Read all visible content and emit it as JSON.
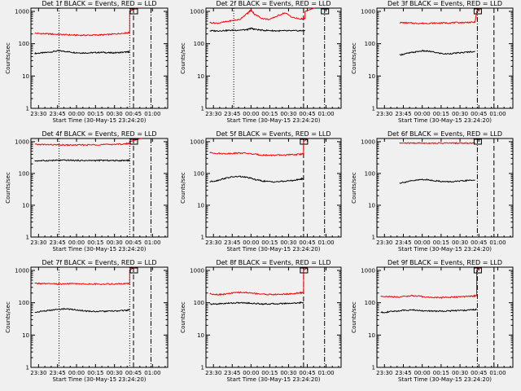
{
  "figure": {
    "background": "#f0f0f0",
    "colors": {
      "events": "#000000",
      "lld": "#ff0000",
      "axes": "#000000"
    }
  },
  "chart_data": [
    {
      "type": "line",
      "title": "Det 1f BLACK = Events, RED = LLD",
      "xlabel": "Start Time (30-May-15 23:24:20)",
      "ylabel": "Counts/sec",
      "x_tick_labels": [
        "23:30",
        "23:45",
        "00:00",
        "00:15",
        "00:30",
        "00:45",
        "01:00"
      ],
      "y_tick_labels": [
        "1",
        "10",
        "100",
        "1000"
      ],
      "y_scale": "log",
      "ylim": [
        1,
        1000
      ],
      "x": [
        23.45,
        23.55,
        23.65,
        23.75,
        23.85,
        23.95,
        24.05,
        24.15,
        24.25,
        24.35,
        24.45,
        24.55,
        24.65,
        24.7
      ],
      "series": [
        {
          "name": "BLACK = Events",
          "color": "#000000",
          "values": [
            50,
            52,
            55,
            60,
            58,
            54,
            52,
            52,
            53,
            54,
            52,
            53,
            55,
            56
          ]
        },
        {
          "name": "RED = LLD",
          "color": "#ff0000",
          "values": [
            210,
            205,
            200,
            195,
            190,
            185,
            183,
            183,
            185,
            188,
            195,
            205,
            215,
            220
          ]
        }
      ],
      "spike": {
        "start": 24.7,
        "end": 24.78,
        "to": 1000,
        "series": "RED = LLD"
      },
      "vlines": [
        {
          "x": 23.77,
          "style": "dotted"
        },
        {
          "x": 24.7,
          "style": "dotted"
        },
        {
          "x": 24.75,
          "style": "dashed"
        },
        {
          "x": 24.98,
          "style": "dashdot"
        }
      ],
      "marker": "bracket-box"
    },
    {
      "type": "line",
      "title": "Det 2f BLACK = Events, RED = LLD",
      "xlabel": "Start Time (30-May-15 23:24:20)",
      "ylabel": "Counts/sec",
      "x_tick_labels": [
        "23:30",
        "23:45",
        "00:00",
        "00:15",
        "00:30",
        "00:45",
        "01:00"
      ],
      "y_tick_labels": [
        "1",
        "10",
        "100",
        "1000"
      ],
      "y_scale": "log",
      "ylim": [
        1,
        1000
      ],
      "x": [
        23.45,
        23.55,
        23.65,
        23.75,
        23.85,
        23.95,
        24.0,
        24.05,
        24.15,
        24.25,
        24.35,
        24.45,
        24.55,
        24.65,
        24.72
      ],
      "series": [
        {
          "name": "BLACK = Events",
          "color": "#000000",
          "values": [
            250,
            250,
            255,
            260,
            265,
            270,
            300,
            280,
            260,
            255,
            250,
            250,
            250,
            252,
            255
          ]
        },
        {
          "name": "RED = LLD",
          "color": "#ff0000",
          "values": [
            450,
            430,
            470,
            520,
            560,
            850,
            1100,
            800,
            600,
            560,
            720,
            900,
            650,
            580,
            600
          ]
        }
      ],
      "spike": {
        "start": 24.72,
        "end": 24.84,
        "to": 1000,
        "series": "RED = LLD"
      },
      "vlines": [
        {
          "x": 23.77,
          "style": "dotted"
        },
        {
          "x": 24.7,
          "style": "dashed"
        },
        {
          "x": 24.98,
          "style": "dashdot"
        }
      ],
      "marker": "bracket-box"
    },
    {
      "type": "line",
      "title": "Det 3f BLACK = Events, RED = LLD",
      "xlabel": "Start Time (30-May-15 23:24:20)",
      "ylabel": "Counts/sec",
      "x_tick_labels": [
        "23:30",
        "23:45",
        "00:00",
        "00:15",
        "00:30",
        "00:45",
        "01:00"
      ],
      "y_tick_labels": [
        "1",
        "10",
        "100",
        "1000"
      ],
      "y_scale": "log",
      "ylim": [
        1,
        1000
      ],
      "x": [
        23.7,
        23.8,
        23.9,
        24.0,
        24.1,
        24.2,
        24.3,
        24.4,
        24.5,
        24.6,
        24.7
      ],
      "series": [
        {
          "name": "BLACK = Events",
          "color": "#000000",
          "values": [
            45,
            50,
            55,
            60,
            58,
            52,
            48,
            50,
            52,
            55,
            58
          ]
        },
        {
          "name": "RED = LLD",
          "color": "#ff0000",
          "values": [
            450,
            440,
            430,
            425,
            430,
            435,
            440,
            445,
            450,
            455,
            460
          ]
        }
      ],
      "spike": {
        "start": 24.72,
        "end": 24.76,
        "to": 1000,
        "series": "RED = LLD"
      },
      "vlines": [
        {
          "x": 24.73,
          "style": "dashdot"
        },
        {
          "x": 24.95,
          "style": "dashed"
        }
      ],
      "marker": "bracket-box"
    },
    {
      "type": "line",
      "title": "Det 4f BLACK = Events, RED = LLD",
      "xlabel": "Start Time (30-May-15 23:24:20)",
      "ylabel": "Counts/sec",
      "x_tick_labels": [
        "23:30",
        "23:45",
        "00:00",
        "00:15",
        "00:30",
        "00:45",
        "01:00"
      ],
      "y_tick_labels": [
        "1",
        "10",
        "100",
        "1000"
      ],
      "y_scale": "log",
      "ylim": [
        1,
        1000
      ],
      "x": [
        23.45,
        23.55,
        23.65,
        23.75,
        23.85,
        23.95,
        24.05,
        24.15,
        24.25,
        24.35,
        24.45,
        24.55,
        24.65,
        24.7
      ],
      "series": [
        {
          "name": "BLACK = Events",
          "color": "#000000",
          "values": [
            250,
            252,
            255,
            258,
            260,
            258,
            255,
            255,
            256,
            258,
            255,
            255,
            258,
            260
          ]
        },
        {
          "name": "RED = LLD",
          "color": "#ff0000",
          "values": [
            820,
            810,
            800,
            790,
            780,
            780,
            785,
            790,
            800,
            810,
            820,
            830,
            850,
            880
          ]
        }
      ],
      "spike": {
        "start": 24.7,
        "end": 24.85,
        "to": 1000,
        "series": "RED = LLD"
      },
      "vlines": [
        {
          "x": 23.77,
          "style": "dotted"
        },
        {
          "x": 24.7,
          "style": "dotted"
        },
        {
          "x": 24.75,
          "style": "dashed"
        },
        {
          "x": 24.98,
          "style": "dashdot"
        }
      ],
      "marker": "bracket-box"
    },
    {
      "type": "line",
      "title": "Det 5f BLACK = Events, RED = LLD",
      "xlabel": "Start Time (30-May-15 23:24:20)",
      "ylabel": "Counts/sec",
      "x_tick_labels": [
        "23:30",
        "23:45",
        "00:00",
        "00:15",
        "00:30",
        "00:45",
        "01:00"
      ],
      "y_tick_labels": [
        "1",
        "10",
        "100",
        "1000"
      ],
      "y_scale": "log",
      "ylim": [
        1,
        1000
      ],
      "x": [
        23.45,
        23.55,
        23.65,
        23.75,
        23.85,
        23.95,
        24.05,
        24.15,
        24.25,
        24.35,
        24.45,
        24.55,
        24.65,
        24.7
      ],
      "series": [
        {
          "name": "BLACK = Events",
          "color": "#000000",
          "values": [
            55,
            60,
            70,
            78,
            80,
            75,
            65,
            58,
            55,
            55,
            57,
            60,
            65,
            70
          ]
        },
        {
          "name": "RED = LLD",
          "color": "#ff0000",
          "values": [
            450,
            430,
            420,
            430,
            440,
            430,
            400,
            380,
            375,
            375,
            380,
            390,
            400,
            420
          ]
        }
      ],
      "spike": {
        "start": 24.7,
        "end": 24.76,
        "to": 1000,
        "series": "RED = LLD"
      },
      "vlines": [
        {
          "x": 24.7,
          "style": "dashed"
        },
        {
          "x": 24.98,
          "style": "dashdot"
        }
      ],
      "marker": "bracket-box"
    },
    {
      "type": "line",
      "title": "Det 6f BLACK = Events, RED = LLD",
      "xlabel": "Start Time (30-May-15 23:24:20)",
      "ylabel": "Counts/sec",
      "x_tick_labels": [
        "23:30",
        "23:45",
        "00:00",
        "00:15",
        "00:30",
        "00:45",
        "01:00"
      ],
      "y_tick_labels": [
        "1",
        "10",
        "100",
        "1000"
      ],
      "y_scale": "log",
      "ylim": [
        1,
        1000
      ],
      "x": [
        23.7,
        23.8,
        23.9,
        24.0,
        24.1,
        24.2,
        24.3,
        24.4,
        24.5,
        24.6,
        24.7
      ],
      "series": [
        {
          "name": "BLACK = Events",
          "color": "#000000",
          "values": [
            50,
            55,
            60,
            65,
            62,
            58,
            55,
            55,
            57,
            60,
            62
          ]
        },
        {
          "name": "RED = LLD",
          "color": "#ff0000",
          "values": [
            900,
            900,
            900,
            900,
            900,
            900,
            900,
            900,
            900,
            900,
            900
          ]
        }
      ],
      "vlines": [
        {
          "x": 24.73,
          "style": "dashdot"
        },
        {
          "x": 24.95,
          "style": "dashed"
        }
      ],
      "marker": "bracket-box"
    },
    {
      "type": "line",
      "title": "Det 7f BLACK = Events, RED = LLD",
      "xlabel": "Start Time (30-May-15 23:24:20)",
      "ylabel": "Counts/sec",
      "x_tick_labels": [
        "23:30",
        "23:45",
        "00:00",
        "00:15",
        "00:30",
        "00:45",
        "01:00"
      ],
      "y_tick_labels": [
        "1",
        "10",
        "100",
        "1000"
      ],
      "y_scale": "log",
      "ylim": [
        1,
        1000
      ],
      "x": [
        23.45,
        23.55,
        23.65,
        23.75,
        23.85,
        23.95,
        24.05,
        24.15,
        24.25,
        24.35,
        24.45,
        24.55,
        24.65,
        24.7
      ],
      "series": [
        {
          "name": "BLACK = Events",
          "color": "#000000",
          "values": [
            50,
            55,
            58,
            62,
            65,
            62,
            58,
            55,
            54,
            54,
            55,
            56,
            58,
            60
          ]
        },
        {
          "name": "RED = LLD",
          "color": "#ff0000",
          "values": [
            400,
            390,
            385,
            380,
            385,
            390,
            385,
            380,
            378,
            378,
            380,
            385,
            390,
            395
          ]
        }
      ],
      "spike": {
        "start": 24.7,
        "end": 24.76,
        "to": 1000,
        "series": "RED = LLD"
      },
      "vlines": [
        {
          "x": 23.77,
          "style": "dotted"
        },
        {
          "x": 24.7,
          "style": "dotted"
        },
        {
          "x": 24.75,
          "style": "dashed"
        },
        {
          "x": 24.98,
          "style": "dashdot"
        }
      ],
      "marker": "bracket-box"
    },
    {
      "type": "line",
      "title": "Det 8f BLACK = Events, RED = LLD",
      "xlabel": "Start Time (30-May-15 23:24:20)",
      "ylabel": "Counts/sec",
      "x_tick_labels": [
        "23:30",
        "23:45",
        "00:00",
        "00:15",
        "00:30",
        "00:45",
        "01:00"
      ],
      "y_tick_labels": [
        "1",
        "10",
        "100",
        "1000"
      ],
      "y_scale": "log",
      "ylim": [
        1,
        1000
      ],
      "x": [
        23.45,
        23.55,
        23.65,
        23.75,
        23.85,
        23.95,
        24.05,
        24.15,
        24.25,
        24.35,
        24.45,
        24.55,
        24.65,
        24.7
      ],
      "series": [
        {
          "name": "BLACK = Events",
          "color": "#000000",
          "values": [
            90,
            92,
            95,
            98,
            100,
            98,
            95,
            92,
            92,
            93,
            95,
            97,
            100,
            102
          ]
        },
        {
          "name": "RED = LLD",
          "color": "#ff0000",
          "values": [
            190,
            180,
            185,
            200,
            210,
            205,
            195,
            185,
            180,
            180,
            185,
            190,
            200,
            210
          ]
        }
      ],
      "spike": {
        "start": 24.7,
        "end": 24.76,
        "to": 1000,
        "series": "RED = LLD"
      },
      "vlines": [
        {
          "x": 24.7,
          "style": "dashed"
        },
        {
          "x": 24.98,
          "style": "dashdot"
        }
      ],
      "marker": "bracket-box"
    },
    {
      "type": "line",
      "title": "Det 9f BLACK = Events, RED = LLD",
      "xlabel": "Start Time (30-May-15 23:24:20)",
      "ylabel": "Counts/sec",
      "x_tick_labels": [
        "23:30",
        "23:45",
        "00:00",
        "00:15",
        "00:30",
        "00:45",
        "01:00"
      ],
      "y_tick_labels": [
        "1",
        "10",
        "100",
        "1000"
      ],
      "y_scale": "log",
      "ylim": [
        1,
        1000
      ],
      "x": [
        23.45,
        23.55,
        23.65,
        23.75,
        23.85,
        23.95,
        24.05,
        24.15,
        24.25,
        24.35,
        24.45,
        24.55,
        24.65,
        24.72
      ],
      "series": [
        {
          "name": "BLACK = Events",
          "color": "#000000",
          "values": [
            50,
            52,
            55,
            58,
            60,
            58,
            56,
            55,
            55,
            56,
            57,
            58,
            60,
            62
          ]
        },
        {
          "name": "RED = LLD",
          "color": "#ff0000",
          "values": [
            160,
            155,
            150,
            155,
            165,
            160,
            150,
            145,
            145,
            148,
            150,
            155,
            160,
            165
          ]
        }
      ],
      "spike": {
        "start": 24.72,
        "end": 24.76,
        "to": 1000,
        "series": "RED = LLD"
      },
      "vlines": [
        {
          "x": 24.73,
          "style": "dashdot"
        },
        {
          "x": 24.95,
          "style": "dashed"
        }
      ],
      "marker": "bracket-box"
    }
  ]
}
